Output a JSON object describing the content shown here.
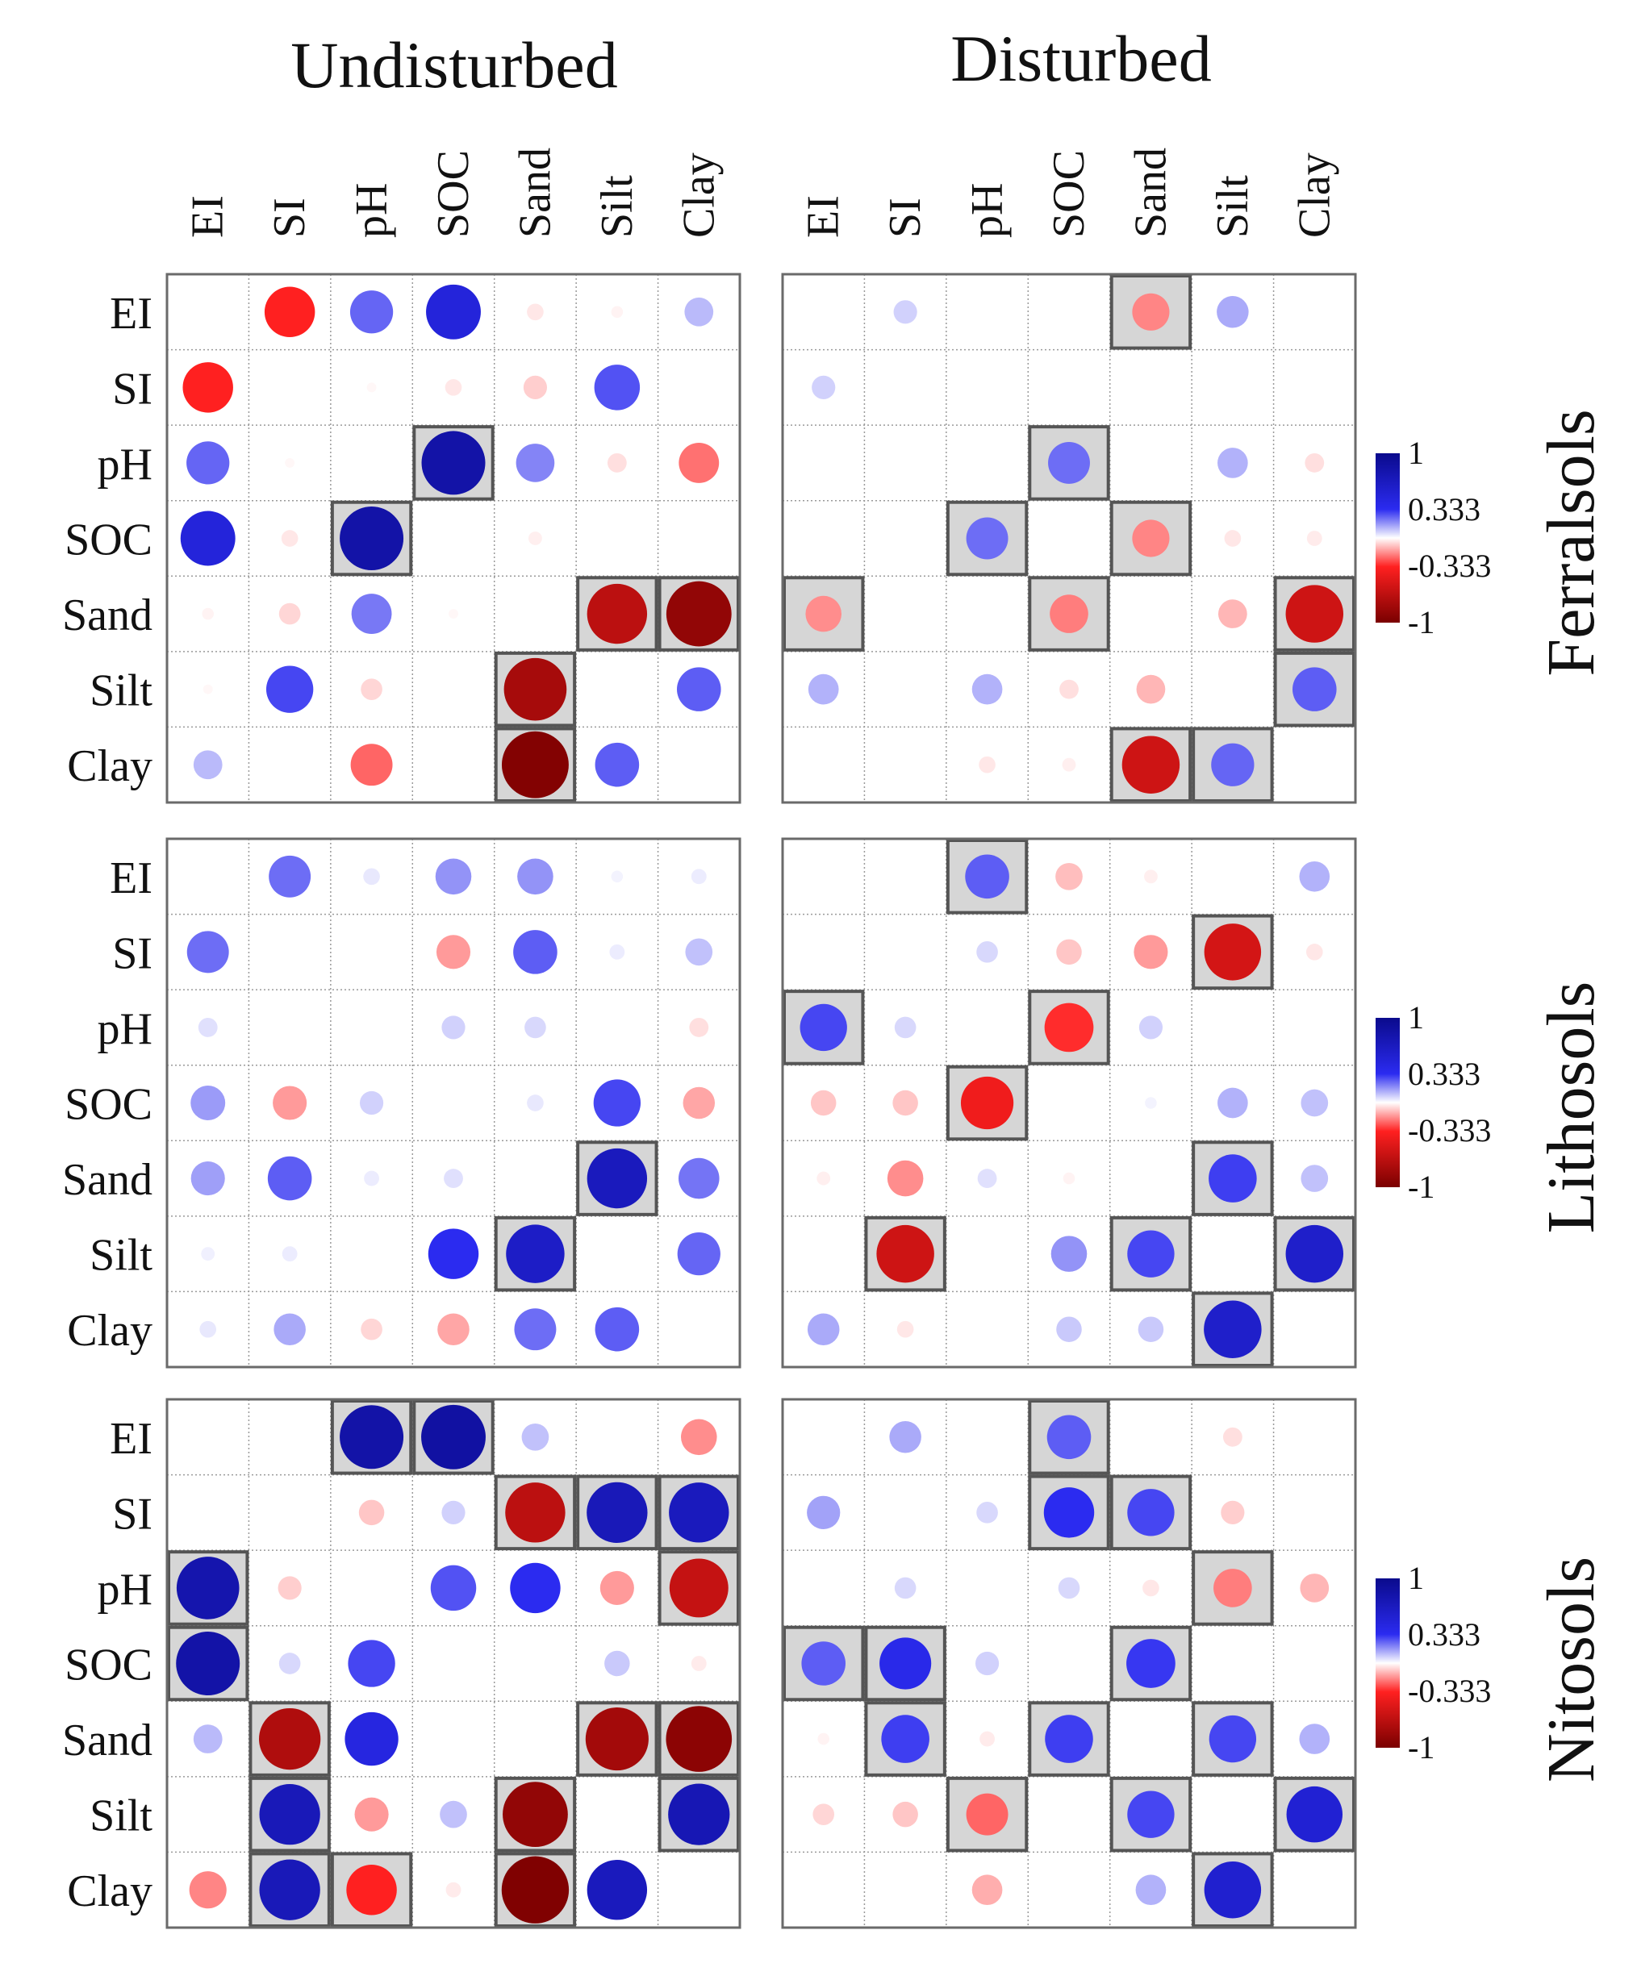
{
  "figure": {
    "column_headers": [
      "Undisturbed",
      "Disturbed"
    ],
    "row_headers": [
      "Ferralsols",
      "Lithosols",
      "Nitosols"
    ]
  },
  "chart_data": {
    "type": "correlation-matrix",
    "variables": [
      "EI",
      "SI",
      "pH",
      "SOC",
      "Sand",
      "Silt",
      "Clay"
    ],
    "color_scale": {
      "range": [
        -1,
        1
      ],
      "ticks": [
        1,
        0.333,
        -0.333,
        -1
      ],
      "tick_labels": [
        "1",
        "0.333",
        "-0.333",
        "-1"
      ],
      "colors": [
        "#7a0000",
        "#ff2020",
        "#ffffff",
        "#2b2bf0",
        "#0a0a8c"
      ]
    },
    "panels": [
      {
        "name": "Ferralsols-Undisturbed",
        "soil": "Ferralsols",
        "condition": "Undisturbed",
        "matrix": [
          [
            0,
            -0.55,
            0.4,
            0.65,
            -0.06,
            -0.03,
            0.18
          ],
          [
            -0.55,
            0,
            -0.02,
            -0.06,
            -0.12,
            0.45,
            0
          ],
          [
            0.4,
            -0.02,
            0,
            0.88,
            0.32,
            -0.08,
            -0.35
          ],
          [
            0.65,
            -0.06,
            0.88,
            0,
            -0.04,
            0,
            0
          ],
          [
            -0.03,
            -0.1,
            0.35,
            -0.02,
            0,
            -0.78,
            -0.92
          ],
          [
            -0.02,
            0.48,
            -0.1,
            0,
            -0.85,
            0,
            0.42
          ],
          [
            0.18,
            0,
            -0.38,
            0,
            -0.97,
            0.42,
            0
          ]
        ],
        "significant": [
          [
            2,
            3
          ],
          [
            3,
            2
          ],
          [
            4,
            5
          ],
          [
            4,
            6
          ],
          [
            5,
            4
          ],
          [
            6,
            4
          ]
        ]
      },
      {
        "name": "Ferralsols-Disturbed",
        "soil": "Ferralsols",
        "condition": "Disturbed",
        "matrix": [
          [
            0,
            0.12,
            0,
            0,
            -0.3,
            0.22,
            0
          ],
          [
            0.12,
            0,
            0,
            0,
            0,
            0,
            0
          ],
          [
            0,
            0,
            0,
            0.38,
            0,
            0.2,
            -0.08
          ],
          [
            0,
            0,
            0.38,
            0,
            -0.3,
            -0.06,
            -0.05
          ],
          [
            -0.28,
            0,
            0,
            -0.32,
            0,
            -0.18,
            -0.72
          ],
          [
            0.2,
            0,
            0.2,
            -0.08,
            -0.18,
            0,
            0.42
          ],
          [
            0,
            0,
            -0.06,
            -0.04,
            -0.72,
            0.4,
            0
          ]
        ],
        "significant": [
          [
            0,
            4
          ],
          [
            2,
            3
          ],
          [
            3,
            2
          ],
          [
            3,
            4
          ],
          [
            4,
            0
          ],
          [
            4,
            3
          ],
          [
            4,
            6
          ],
          [
            5,
            6
          ],
          [
            6,
            4
          ],
          [
            6,
            5
          ]
        ]
      },
      {
        "name": "Lithosols-Undisturbed",
        "soil": "Lithosols",
        "condition": "Undisturbed",
        "matrix": [
          [
            0,
            0.38,
            0.06,
            0.28,
            0.28,
            0.03,
            0.05
          ],
          [
            0.38,
            0,
            0,
            -0.25,
            0.42,
            0.05,
            0.16
          ],
          [
            0.08,
            0,
            0,
            0.12,
            0.1,
            0,
            -0.08
          ],
          [
            0.26,
            -0.25,
            0.12,
            0,
            0.06,
            0.48,
            -0.22
          ],
          [
            0.25,
            0.42,
            0.05,
            0.08,
            0,
            0.78,
            0.36
          ],
          [
            0.04,
            0.05,
            0,
            0.55,
            0.74,
            0,
            0.4
          ],
          [
            0.06,
            0.22,
            -0.1,
            -0.22,
            0.38,
            0.42,
            0
          ]
        ],
        "significant": [
          [
            4,
            5
          ],
          [
            5,
            4
          ]
        ]
      },
      {
        "name": "Lithosols-Disturbed",
        "soil": "Lithosols",
        "condition": "Disturbed",
        "matrix": [
          [
            0,
            0,
            0.42,
            -0.16,
            -0.04,
            0,
            0.2
          ],
          [
            0,
            0,
            0.1,
            -0.14,
            -0.25,
            -0.7,
            -0.06
          ],
          [
            0.48,
            0.1,
            0,
            -0.52,
            0.12,
            0,
            0
          ],
          [
            -0.14,
            -0.14,
            -0.6,
            0,
            0.03,
            0.2,
            0.16
          ],
          [
            -0.04,
            -0.28,
            0.08,
            -0.03,
            0,
            0.5,
            0.16
          ],
          [
            0,
            -0.72,
            0,
            0.28,
            0.48,
            0,
            0.72
          ],
          [
            0.22,
            -0.06,
            0,
            0.14,
            0.14,
            0.72,
            0
          ]
        ],
        "significant": [
          [
            0,
            2
          ],
          [
            1,
            5
          ],
          [
            2,
            0
          ],
          [
            2,
            3
          ],
          [
            3,
            2
          ],
          [
            4,
            5
          ],
          [
            5,
            1
          ],
          [
            5,
            4
          ],
          [
            5,
            6
          ],
          [
            6,
            5
          ]
        ]
      },
      {
        "name": "Nitosols-Undisturbed",
        "soil": "Nitosols",
        "condition": "Undisturbed",
        "matrix": [
          [
            0,
            0,
            0.88,
            0.9,
            0.16,
            0,
            -0.28
          ],
          [
            0,
            0,
            -0.14,
            0.12,
            -0.78,
            0.8,
            0.78
          ],
          [
            0.85,
            -0.12,
            0,
            0.45,
            0.55,
            -0.25,
            -0.75
          ],
          [
            0.88,
            0.1,
            0.48,
            0,
            0,
            0.14,
            -0.05
          ],
          [
            0.18,
            -0.82,
            0.62,
            0,
            0,
            -0.86,
            -0.94
          ],
          [
            0,
            0.8,
            -0.25,
            0.16,
            -0.92,
            0,
            0.82
          ],
          [
            -0.3,
            0.8,
            -0.55,
            -0.05,
            -0.98,
            0.78,
            0
          ]
        ],
        "significant": [
          [
            0,
            2
          ],
          [
            0,
            3
          ],
          [
            1,
            4
          ],
          [
            1,
            5
          ],
          [
            1,
            6
          ],
          [
            2,
            0
          ],
          [
            2,
            6
          ],
          [
            3,
            0
          ],
          [
            4,
            1
          ],
          [
            4,
            5
          ],
          [
            4,
            6
          ],
          [
            5,
            1
          ],
          [
            5,
            4
          ],
          [
            5,
            6
          ],
          [
            6,
            1
          ],
          [
            6,
            2
          ],
          [
            6,
            4
          ]
        ]
      },
      {
        "name": "Nitosols-Disturbed",
        "soil": "Nitosols",
        "condition": "Disturbed",
        "matrix": [
          [
            0,
            0.22,
            0,
            0.42,
            0,
            -0.08,
            0
          ],
          [
            0.24,
            0,
            0.1,
            0.55,
            0.48,
            -0.12,
            0
          ],
          [
            0,
            0.1,
            0,
            0.1,
            -0.06,
            -0.32,
            -0.18
          ],
          [
            0.42,
            0.58,
            0.12,
            0,
            0.52,
            0,
            0
          ],
          [
            -0.03,
            0.5,
            -0.05,
            0.5,
            0,
            0.48,
            0.2
          ],
          [
            -0.1,
            -0.14,
            -0.38,
            0,
            0.48,
            0,
            0.68
          ],
          [
            0,
            0,
            -0.2,
            0,
            0.2,
            0.7,
            0
          ]
        ],
        "significant": [
          [
            0,
            3
          ],
          [
            1,
            3
          ],
          [
            1,
            4
          ],
          [
            2,
            5
          ],
          [
            3,
            0
          ],
          [
            3,
            1
          ],
          [
            3,
            4
          ],
          [
            4,
            1
          ],
          [
            4,
            3
          ],
          [
            4,
            5
          ],
          [
            5,
            2
          ],
          [
            5,
            4
          ],
          [
            5,
            6
          ],
          [
            6,
            5
          ]
        ]
      }
    ]
  }
}
